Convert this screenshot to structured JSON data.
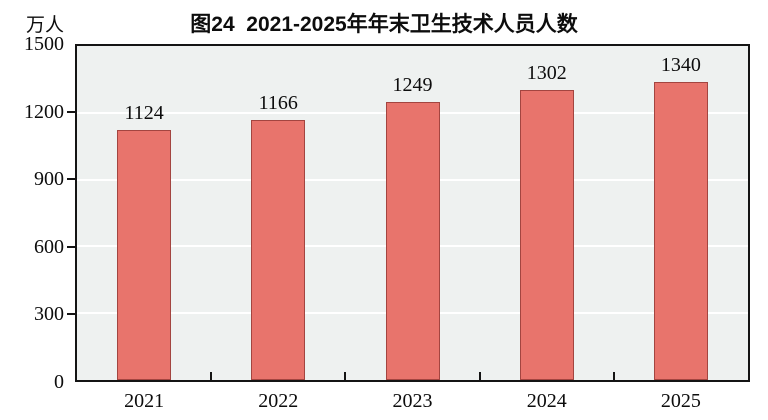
{
  "chart_data": {
    "type": "bar",
    "title": "图24  2021-2025年年末卫生技术人员人数",
    "unit_label": "万人",
    "categories": [
      "2021",
      "2022",
      "2023",
      "2024",
      "2025"
    ],
    "values": [
      1124,
      1166,
      1249,
      1302,
      1340
    ],
    "xlabel": "",
    "ylabel": "万人",
    "ylim": [
      0,
      1500
    ],
    "yticks": [
      0,
      300,
      600,
      900,
      1200,
      1500
    ],
    "grid": "horizontal",
    "legend_position": "none",
    "colors": {
      "bar_fill": "#E8746C",
      "bar_border": "#A34540",
      "plot_background": "#EEF1F0",
      "gridline": "#FFFFFF",
      "axis": "#141414",
      "text": "#0d0d0d",
      "page_background": "#FFFFFF"
    }
  }
}
